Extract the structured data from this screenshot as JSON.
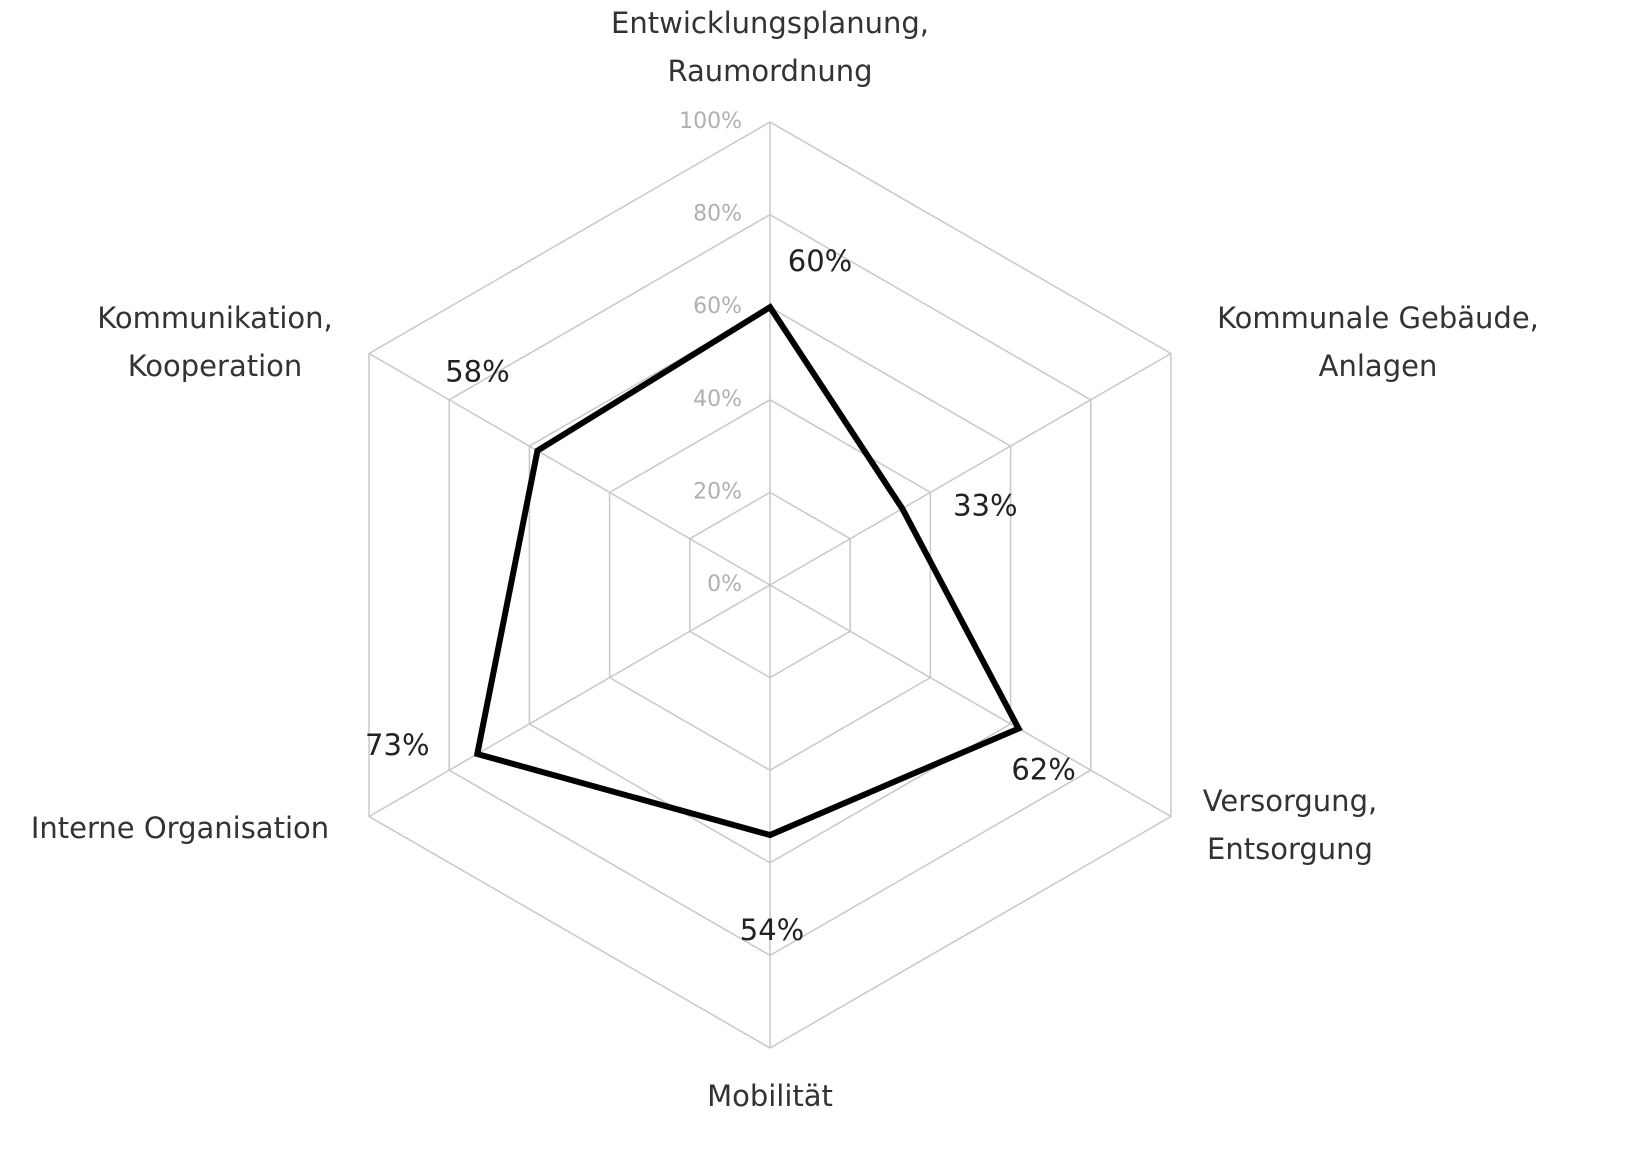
{
  "chart_data": {
    "type": "radar",
    "categories": [
      "Entwicklungsplanung, Raumordnung",
      "Kommunale Gebäude, Anlagen",
      "Versorgung, Entsorgung",
      "Mobilität",
      "Interne Organisation",
      "Kommunikation, Kooperation"
    ],
    "series": [
      {
        "color": "#000000",
        "values": [
          60,
          33,
          62,
          54,
          73,
          58
        ],
        "value_labels": [
          "60%",
          "33%",
          "62%",
          "54%",
          "73%",
          "58%"
        ]
      }
    ],
    "ylim": [
      0,
      100
    ],
    "yticks": [
      {
        "value": 0,
        "label": "0%"
      },
      {
        "value": 20,
        "label": "20%"
      },
      {
        "value": 40,
        "label": "40%"
      },
      {
        "value": 60,
        "label": "60%"
      },
      {
        "value": 80,
        "label": "80%"
      },
      {
        "value": 100,
        "label": "100%"
      }
    ],
    "grid": true
  }
}
